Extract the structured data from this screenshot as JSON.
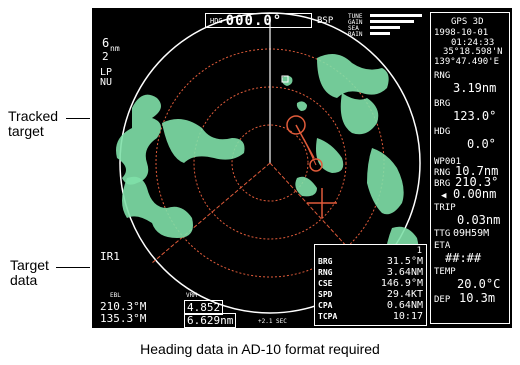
{
  "callouts": {
    "tracked_target": "Tracked\ntarget",
    "target_data": "Target\ndata"
  },
  "caption": "Heading data in AD-10 format required",
  "radar": {
    "heading": {
      "tag": "HDG",
      "value": "000.0°",
      "reference": "BSP"
    },
    "range": {
      "value": "6",
      "unit": "nm",
      "rings_value": "2"
    },
    "mode": {
      "line1": "LP",
      "line2": "NU"
    },
    "interference_rejection": "IR1",
    "sidebar": {
      "gps_mode": "GPS 3D",
      "date": "1998-10-01",
      "time": "01:24:33",
      "latitude": "35°18.598'N",
      "longitude": "139°47.490'E",
      "rng_label": "RNG",
      "rng_value": "3.19nm",
      "brg_label": "BRG",
      "brg_value": "123.0°",
      "hdg_label": "HDG",
      "hdg_value": "0.0°",
      "wpt_label": "WP001",
      "wpt_rng_label": "RNG",
      "wpt_rng_value": "10.7nm",
      "wpt_brg_label": "BRG",
      "wpt_brg_value": "210.3°",
      "xte_value": "0.00nm",
      "trip_label": "TRIP",
      "trip_value": "0.03nm",
      "ttg_label": "TTG",
      "ttg_value": "09H59M",
      "eta_label": "ETA",
      "eta_value": "##:##",
      "temp_label": "TEMP",
      "temp_value": "20.0°C",
      "dep_label": "DEP",
      "dep_value": "10.3m"
    },
    "target_data": {
      "id": "1",
      "rows": [
        {
          "label": "BRG",
          "value": "31.5°M"
        },
        {
          "label": "RNG",
          "value": "3.64NM"
        },
        {
          "label": "CSE",
          "value": "146.9°M"
        },
        {
          "label": "SPD",
          "value": "29.4KT"
        },
        {
          "label": "CPA",
          "value": "0.64NM"
        },
        {
          "label": "TCPA",
          "value": "10:17"
        }
      ]
    },
    "bottom_left": {
      "ebl_tag": "EBL",
      "vrm_tag": "VRM",
      "ebl1": "210.3°M",
      "ebl2": "135.3°M",
      "vrm1": "4.852",
      "vrm2": "6.629nm",
      "bottom_tag": "+2.1 SEC"
    },
    "weather_labels": [
      "TUNE",
      "GAIN",
      "SEA",
      "RAIN"
    ]
  }
}
